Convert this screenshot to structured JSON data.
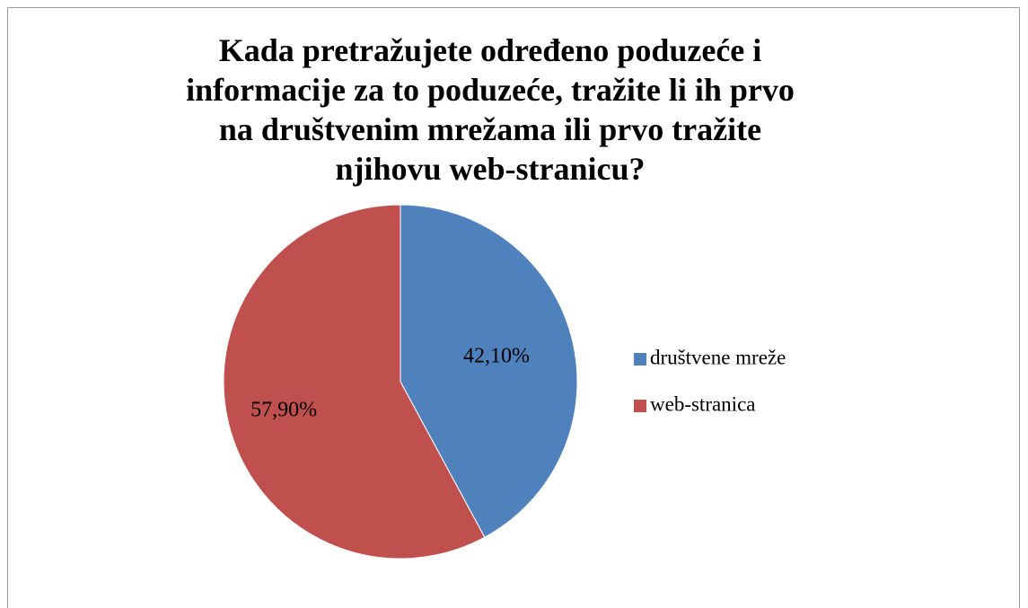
{
  "chart_data": {
    "type": "pie",
    "title": "Kada pretražujete određeno poduzeće i informacije za to poduzeće, tražite li ih prvo na društvenim mrežama ili prvo tražite njihovu web-stranicu?",
    "categories": [
      "društvene mreže",
      "web-stranica"
    ],
    "values": [
      42.1,
      57.9
    ],
    "value_labels": [
      "42,10%",
      "57,90%"
    ],
    "colors": [
      "#4f81bd",
      "#c0504d"
    ],
    "legend": "right"
  }
}
